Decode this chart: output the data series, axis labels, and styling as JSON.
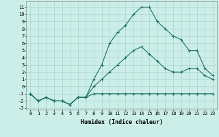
{
  "xlabel": "Humidex (Indice chaleur)",
  "background_color": "#cceee8",
  "grid_color": "#aad4cc",
  "line_color": "#1a6e64",
  "xlim": [
    -0.5,
    23.5
  ],
  "ylim": [
    -3.2,
    11.8
  ],
  "xticks": [
    0,
    1,
    2,
    3,
    4,
    5,
    6,
    7,
    8,
    9,
    10,
    11,
    12,
    13,
    14,
    15,
    16,
    17,
    18,
    19,
    20,
    21,
    22,
    23
  ],
  "yticks": [
    -3,
    -2,
    -1,
    0,
    1,
    2,
    3,
    4,
    5,
    6,
    7,
    8,
    9,
    10,
    11
  ],
  "line1_x": [
    0,
    1,
    2,
    3,
    4,
    5,
    6,
    7,
    8,
    9,
    10,
    11,
    12,
    13,
    14,
    15,
    16,
    17,
    18,
    19,
    20,
    21,
    22,
    23
  ],
  "line1_y": [
    -1,
    -2,
    -1.5,
    -2,
    -2,
    -2.5,
    -1.5,
    -1.5,
    -1,
    -1,
    -1,
    -1,
    -1,
    -1,
    -1,
    -1,
    -1,
    -1,
    -1,
    -1,
    -1,
    -1,
    -1,
    -1
  ],
  "line2_x": [
    0,
    1,
    2,
    3,
    4,
    5,
    6,
    7,
    8,
    9,
    10,
    11,
    12,
    13,
    14,
    15,
    16,
    17,
    18,
    19,
    20,
    21,
    22,
    23
  ],
  "line2_y": [
    -1,
    -2,
    -1.5,
    -2,
    -2,
    -2.5,
    -1.5,
    -1.5,
    0,
    1,
    2,
    3,
    4,
    5,
    5.5,
    4.5,
    3.5,
    2.5,
    2,
    2,
    2.5,
    2.5,
    1.5,
    1
  ],
  "line3_x": [
    0,
    1,
    2,
    3,
    4,
    5,
    6,
    7,
    8,
    9,
    10,
    11,
    12,
    13,
    14,
    15,
    16,
    17,
    18,
    19,
    20,
    21,
    22,
    23
  ],
  "line3_y": [
    -1,
    -2,
    -1.5,
    -2,
    -2,
    -2.5,
    -1.5,
    -1.5,
    1,
    3,
    6,
    7.5,
    8.5,
    10,
    11,
    11,
    9,
    8,
    7,
    6.5,
    5,
    5,
    2.5,
    1.5
  ],
  "xtick_labels": [
    "0",
    "1",
    "2",
    "3",
    "4",
    "5",
    "6",
    "7",
    "8",
    "9",
    "10",
    "11",
    "12",
    "13",
    "14",
    "15",
    "16",
    "17",
    "18",
    "19",
    "20",
    "21",
    "22",
    "23"
  ],
  "ytick_labels": [
    "-3",
    "-2",
    "-1",
    "0",
    "1",
    "2",
    "3",
    "4",
    "5",
    "6",
    "7",
    "8",
    "9",
    "10",
    "11"
  ],
  "tick_fontsize": 5,
  "xlabel_fontsize": 6,
  "marker_size": 2.5,
  "linewidth": 0.8
}
